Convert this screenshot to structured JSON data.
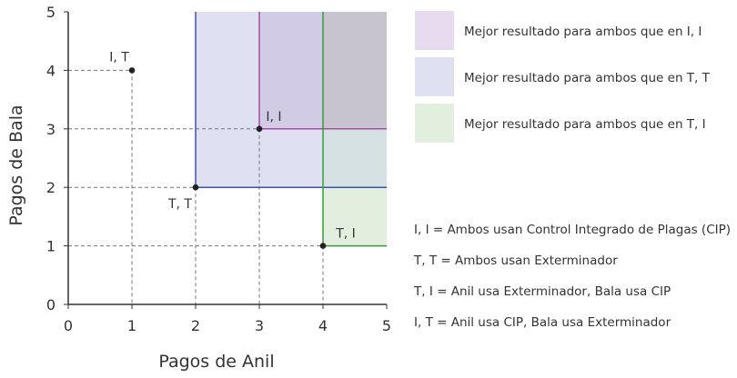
{
  "chart_data": {
    "type": "scatter",
    "xlabel": "Pagos de Anil",
    "ylabel": "Pagos de Bala",
    "xlim": [
      0,
      5
    ],
    "ylim": [
      0,
      5
    ],
    "xticks": [
      "0",
      "1",
      "2",
      "3",
      "4",
      "5"
    ],
    "yticks": [
      "0",
      "1",
      "2",
      "3",
      "4",
      "5"
    ],
    "grid": false,
    "points": [
      {
        "label": "I, T",
        "x": 1,
        "y": 4
      },
      {
        "label": "T, T",
        "x": 2,
        "y": 2
      },
      {
        "label": "I, I",
        "x": 3,
        "y": 3
      },
      {
        "label": "T, I",
        "x": 4,
        "y": 1
      }
    ],
    "regions": [
      {
        "from_point": "T, T",
        "x0": 2,
        "y0": 2,
        "color": "#dfe1f2",
        "line_color": "#3b52b4",
        "legend": "Mejor resultado para ambos que en T, T"
      },
      {
        "from_point": "I, I",
        "x0": 3,
        "y0": 3,
        "color": "#e7dcef",
        "line_color": "#a64ca6",
        "legend": "Mejor resultado para ambos que en I, I"
      },
      {
        "from_point": "T, I",
        "x0": 4,
        "y0": 1,
        "color": "#e2efdf",
        "line_color": "#3a9a3a",
        "legend": "Mejor resultado para ambos que en T, I"
      }
    ],
    "legend_position": "top-right",
    "definitions": [
      "I, I = Ambos usan Control Integrado de Plagas (CIP)",
      "T, T = Ambos usan Exterminador",
      "T, I = Anil usa Exterminador, Bala usa CIP",
      "I, T = Anil usa CIP, Bala usa Exterminador"
    ]
  },
  "colors": {
    "overlap_ii_tt": "#d2cbe6",
    "overlap_ti_tt": "#d6e1e4",
    "overlap_all": "#c7c4d0",
    "axis": "#333333",
    "guide": "#777777"
  }
}
